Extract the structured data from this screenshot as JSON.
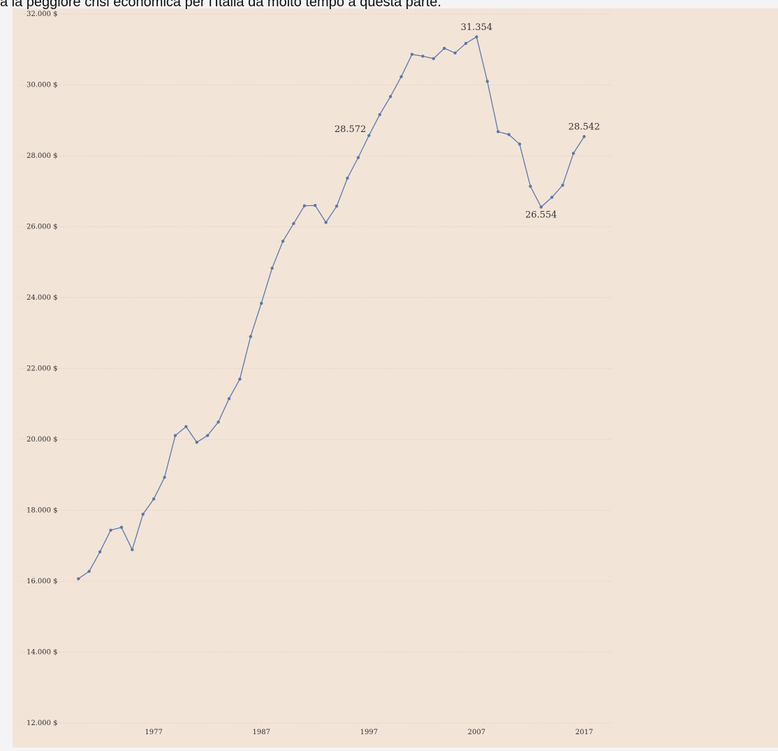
{
  "header": {
    "caption": "a la peggiore crisi economica per l'Italia da molto tempo a questa parte."
  },
  "colors": {
    "background": "#f3e4d8",
    "line": "#5b78a8",
    "grid": "#e6d2c2"
  },
  "chart_data": {
    "type": "line",
    "title": "",
    "xlabel": "",
    "ylabel": "",
    "ylim": [
      12000,
      32000
    ],
    "xlim": [
      1970.5,
      2019.5
    ],
    "grid": "horizontal",
    "y_ticks": [
      {
        "value": 12000,
        "label": "12.000 $"
      },
      {
        "value": 14000,
        "label": "14.000 $"
      },
      {
        "value": 16000,
        "label": "16.000 $"
      },
      {
        "value": 18000,
        "label": "18.000 $"
      },
      {
        "value": 20000,
        "label": "20.000 $"
      },
      {
        "value": 22000,
        "label": "22.000 $"
      },
      {
        "value": 24000,
        "label": "24.000 $"
      },
      {
        "value": 26000,
        "label": "26.000 $"
      },
      {
        "value": 28000,
        "label": "28.000 $"
      },
      {
        "value": 30000,
        "label": "30.000 $"
      },
      {
        "value": 32000,
        "label": "32.000 $"
      }
    ],
    "x_ticks": [
      {
        "value": 1977,
        "label": "1977"
      },
      {
        "value": 1987,
        "label": "1987"
      },
      {
        "value": 1997,
        "label": "1997"
      },
      {
        "value": 2007,
        "label": "2007"
      },
      {
        "value": 2017,
        "label": "2017"
      }
    ],
    "series": [
      {
        "x": [
          1970,
          1971,
          1972,
          1973,
          1974,
          1975,
          1976,
          1977,
          1978,
          1979,
          1980,
          1981,
          1982,
          1983,
          1984,
          1985,
          1986,
          1987,
          1988,
          1989,
          1990,
          1991,
          1992,
          1993,
          1994,
          1995,
          1996,
          1997,
          1998,
          1999,
          2000,
          2001,
          2002,
          2003,
          2004,
          2005,
          2006,
          2007,
          2008,
          2009,
          2010,
          2011,
          2012,
          2013,
          2014,
          2015,
          2016,
          2017
        ],
        "y": [
          16070,
          16280,
          16830,
          17440,
          17520,
          16890,
          17890,
          18320,
          18930,
          20110,
          20360,
          19920,
          20110,
          20490,
          21150,
          21700,
          22900,
          23840,
          24830,
          25590,
          26090,
          26590,
          26600,
          26120,
          26580,
          27370,
          27950,
          28572,
          29160,
          29670,
          30230,
          30860,
          30810,
          30740,
          31030,
          30900,
          31170,
          31354,
          30100,
          28680,
          28600,
          28330,
          27140,
          26554,
          26830,
          27170,
          28070,
          28542
        ]
      }
    ],
    "annotations": [
      {
        "x": 1997,
        "y": 28572,
        "label": "28.572",
        "position": "left"
      },
      {
        "x": 2007,
        "y": 31354,
        "label": "31.354",
        "position": "above"
      },
      {
        "x": 2013,
        "y": 26554,
        "label": "26.554",
        "position": "below"
      },
      {
        "x": 2017,
        "y": 28542,
        "label": "28.542",
        "position": "above"
      }
    ]
  }
}
